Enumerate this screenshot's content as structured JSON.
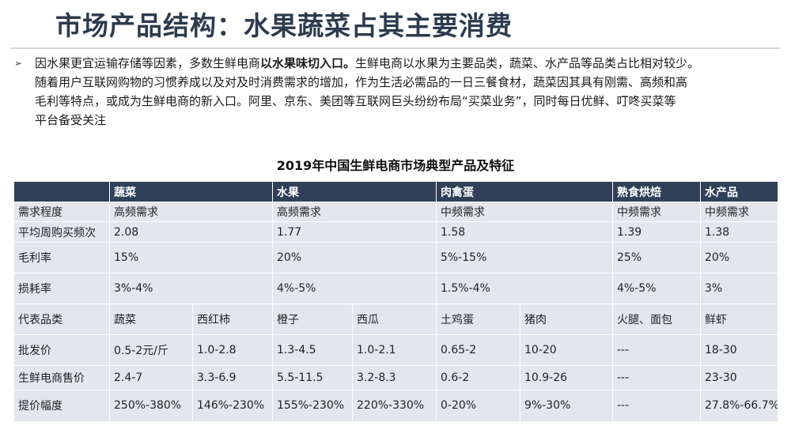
{
  "title": "市场产品结构：水果蔬菜占其主要消费",
  "intro": {
    "bullet": "➢",
    "line1_a": "因水果更宜运输存储等因素，多数生鲜电商",
    "line1_bold": "以水果味切入口。",
    "line1_b": "生鲜电商以水果为主要品类，蔬菜、水产品等品类占比相对较少。",
    "line2": "随着用户互联网购物的习惯养成以及对及时消费需求的增加，作为生活必需品的一日三餐食材，蔬菜因其具有刚需、高频和高",
    "line3": "毛利等特点，或成为生鲜电商的新入口。阿里、京东、美团等互联网巨头纷纷布局“买菜业务”，同时每日优鲜、叮咚买菜等",
    "line4": "平台备受关注"
  },
  "table": {
    "title": "2019年中国生鲜电商市场典型产品及特征",
    "headers": [
      "",
      "蔬菜",
      "水果",
      "肉禽蛋",
      "熟食烘焙",
      "水产品"
    ],
    "rows": {
      "demand": [
        "需求程度",
        "高频需求",
        "高频需求",
        "中频需求",
        "中频需求",
        "中频需求"
      ],
      "weekly_freq": [
        "平均周购买频次",
        "2.08",
        "1.77",
        "1.58",
        "1.39",
        "1.38"
      ],
      "gross_margin": [
        "毛利率",
        "15%",
        "20%",
        "5%-15%",
        "25%",
        "20%"
      ],
      "loss_rate": [
        "损耗率",
        "3%-4%",
        "4%-5%",
        "1.5%-4%",
        "4%-5%",
        "3%"
      ],
      "products": [
        "代表品类",
        "蔬菜",
        "西红柿",
        "橙子",
        "西瓜",
        "土鸡蛋",
        "猪肉",
        "火腿、面包",
        "鲜虾"
      ],
      "wholesale": [
        "批发价",
        "0.5-2元/斤",
        "1.0-2.8",
        "1.3-4.5",
        "1.0-2.1",
        "0.65-2",
        "10-20",
        "---",
        "18-30"
      ],
      "retail": [
        "生鲜电商售价",
        "2.4-7",
        "3.3-6.9",
        "5.5-11.5",
        "3.2-8.3",
        "0.6-2",
        "10.9-26",
        "---",
        "23-30"
      ],
      "markup": [
        "提价幅度",
        "250%-380%",
        "146%-230%",
        "155%-230%",
        "220%-330%",
        "0-20%",
        "9%-30%",
        "---",
        "27.8%-66.7%"
      ]
    }
  }
}
